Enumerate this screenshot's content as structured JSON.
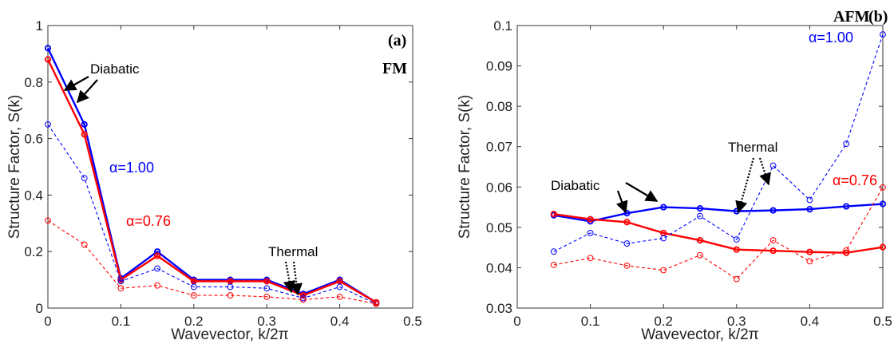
{
  "chart_data": [
    {
      "type": "line",
      "panel_label": "(a)",
      "phase_label": "FM",
      "xlabel": "Wavevector, k/2π",
      "ylabel": "Structure Factor, S(k)",
      "xlim": [
        0,
        0.5
      ],
      "ylim": [
        0,
        1
      ],
      "xticks": [
        "0",
        "0.1",
        "0.2",
        "0.3",
        "0.4",
        "0.5"
      ],
      "yticks": [
        "0",
        "0.2",
        "0.4",
        "0.6",
        "0.8",
        "1"
      ],
      "x": [
        0,
        0.05,
        0.1,
        0.15,
        0.2,
        0.25,
        0.3,
        0.35,
        0.4,
        0.45
      ],
      "series": [
        {
          "group": "diabatic",
          "alpha": "1.00",
          "color": "#0000ff",
          "style": "solid",
          "values": [
            0.92,
            0.65,
            0.105,
            0.2,
            0.1,
            0.1,
            0.1,
            0.05,
            0.1,
            0.02
          ]
        },
        {
          "group": "diabatic",
          "alpha": "0.76",
          "color": "#ff0000",
          "style": "solid",
          "values": [
            0.88,
            0.615,
            0.1,
            0.185,
            0.095,
            0.095,
            0.095,
            0.045,
            0.095,
            0.02
          ]
        },
        {
          "group": "thermal",
          "alpha": "1.00",
          "color": "#0000ff",
          "style": "dashed",
          "values": [
            0.65,
            0.46,
            0.095,
            0.14,
            0.075,
            0.075,
            0.07,
            0.035,
            0.075,
            0.015
          ]
        },
        {
          "group": "thermal",
          "alpha": "0.76",
          "color": "#ff0000",
          "style": "dashed",
          "values": [
            0.31,
            0.225,
            0.07,
            0.08,
            0.045,
            0.045,
            0.04,
            0.03,
            0.04,
            0.015
          ]
        }
      ],
      "annotations": {
        "diabatic": "Diabatic",
        "thermal": "Thermal",
        "alpha_high": "α=1.00",
        "alpha_low": "α=0.76"
      }
    },
    {
      "type": "line",
      "panel_label": "(b)",
      "phase_label": "AFM",
      "xlabel": "Wavevector, k/2π",
      "ylabel": "Structure Factor, S(k)",
      "xlim": [
        0,
        0.5
      ],
      "ylim": [
        0.03,
        0.1
      ],
      "xticks": [
        "0",
        "0.1",
        "0.2",
        "0.3",
        "0.4",
        "0.5"
      ],
      "yticks": [
        "0.03",
        "0.04",
        "0.05",
        "0.06",
        "0.07",
        "0.08",
        "0.09",
        "0.1"
      ],
      "x": [
        0.05,
        0.1,
        0.15,
        0.2,
        0.25,
        0.3,
        0.35,
        0.4,
        0.45,
        0.5
      ],
      "series": [
        {
          "group": "diabatic",
          "alpha": "1.00",
          "color": "#0000ff",
          "style": "solid",
          "values": [
            0.053,
            0.0515,
            0.0535,
            0.055,
            0.0547,
            0.054,
            0.0542,
            0.0545,
            0.0552,
            0.0558
          ]
        },
        {
          "group": "diabatic",
          "alpha": "0.76",
          "color": "#ff0000",
          "style": "solid",
          "values": [
            0.0533,
            0.052,
            0.0513,
            0.0486,
            0.0468,
            0.0445,
            0.0442,
            0.0439,
            0.0437,
            0.0451
          ]
        },
        {
          "group": "thermal",
          "alpha": "1.00",
          "color": "#0000ff",
          "style": "dashed",
          "values": [
            0.044,
            0.0486,
            0.046,
            0.0473,
            0.0528,
            0.047,
            0.0653,
            0.0568,
            0.0707,
            0.0978
          ]
        },
        {
          "group": "thermal",
          "alpha": "0.76",
          "color": "#ff0000",
          "style": "dashed",
          "values": [
            0.0407,
            0.0424,
            0.0405,
            0.0394,
            0.0431,
            0.0372,
            0.0468,
            0.0416,
            0.0443,
            0.0599
          ]
        }
      ],
      "annotations": {
        "diabatic": "Diabatic",
        "thermal": "Thermal",
        "alpha_high": "α=1.00",
        "alpha_low": "α=0.76"
      }
    }
  ]
}
